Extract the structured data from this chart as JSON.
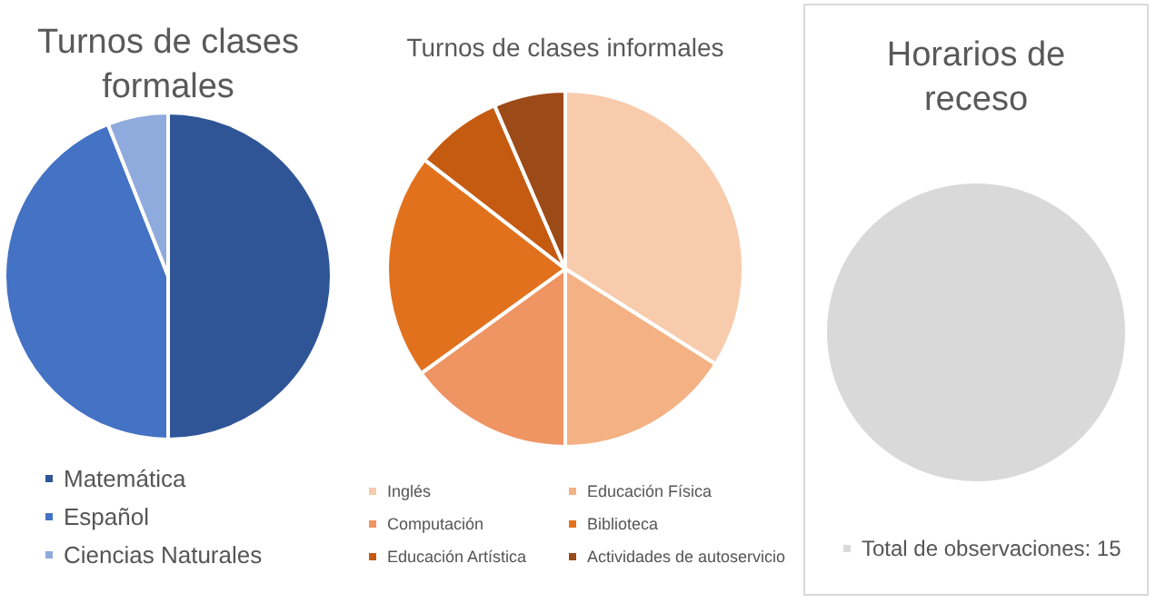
{
  "chart_data": [
    {
      "type": "pie",
      "title": "Turnos de clases\nformales",
      "categories": [
        "Matemática",
        "Español",
        "Ciencias Naturales"
      ],
      "values": [
        50,
        44,
        6
      ],
      "colors": [
        "#2f5597",
        "#4472c4",
        "#8faadc"
      ],
      "legend": "bottom"
    },
    {
      "type": "pie",
      "title": "Turnos de clases informales",
      "categories": [
        "Inglés",
        "Educación Física",
        "Computación",
        "Biblioteca",
        "Educación Artística",
        "Actividades de autoservicio"
      ],
      "values": [
        34,
        16,
        15,
        20.5,
        8,
        6.5
      ],
      "colors": [
        "#f8cbad",
        "#f4b183",
        "#ef9463",
        "#e2711d",
        "#c55a11",
        "#9c4a17"
      ],
      "legend": "bottom"
    },
    {
      "type": "pie",
      "title": "Horarios de\nreceso",
      "categories": [
        "Total de observaciones: 15"
      ],
      "values": [
        100
      ],
      "colors": [
        "#d9d9d9"
      ],
      "legend": "bottom"
    }
  ]
}
